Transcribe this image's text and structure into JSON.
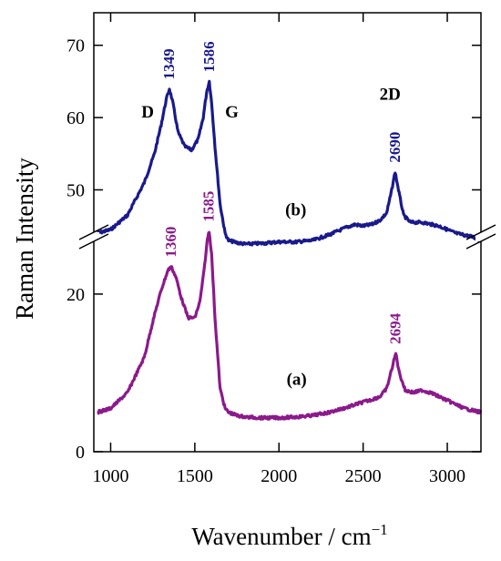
{
  "chart_data": {
    "type": "line",
    "xlabel": "Wavenumber / cm",
    "xlabel_superscript": "−1",
    "ylabel": "Raman Intensity",
    "xlim": [
      900,
      3200
    ],
    "x_ticks": [
      1000,
      1500,
      2000,
      2500,
      3000
    ],
    "y_axis_break": true,
    "upper_panel": {
      "ylim": [
        42.5,
        74.5
      ],
      "y_ticks": [
        50,
        60,
        70
      ]
    },
    "lower_panel": {
      "ylim": [
        0,
        27.5
      ],
      "y_ticks": [
        0,
        20
      ]
    },
    "grid": false,
    "series": [
      {
        "name": "(b)",
        "panel": "upper",
        "color": "#1a1a8c",
        "x": [
          920,
          1000,
          1100,
          1200,
          1260,
          1300,
          1330,
          1349,
          1370,
          1400,
          1440,
          1480,
          1520,
          1550,
          1570,
          1586,
          1600,
          1620,
          1650,
          1680,
          1700,
          1750,
          1800,
          1900,
          2000,
          2100,
          2200,
          2300,
          2400,
          2450,
          2500,
          2550,
          2600,
          2640,
          2670,
          2690,
          2710,
          2740,
          2780,
          2850,
          2950,
          3050,
          3150,
          3200
        ],
        "y": [
          44.0,
          44.5,
          46.5,
          51.0,
          55.0,
          59.0,
          62.5,
          64.0,
          62.0,
          58.0,
          56.0,
          55.5,
          57.0,
          60.0,
          63.5,
          65.0,
          62.0,
          56.0,
          48.0,
          44.0,
          43.0,
          42.7,
          42.5,
          42.6,
          42.8,
          42.8,
          43.0,
          43.8,
          44.8,
          45.2,
          45.0,
          45.2,
          45.8,
          46.8,
          50.0,
          52.5,
          50.0,
          46.5,
          45.5,
          45.5,
          45.0,
          44.0,
          43.5,
          43.0
        ]
      },
      {
        "name": "(a)",
        "panel": "lower",
        "color": "#8b1a8b",
        "x": [
          920,
          1000,
          1100,
          1200,
          1250,
          1300,
          1340,
          1360,
          1390,
          1420,
          1460,
          1500,
          1530,
          1555,
          1575,
          1585,
          1600,
          1620,
          1650,
          1680,
          1700,
          1750,
          1800,
          1900,
          2000,
          2100,
          2200,
          2300,
          2400,
          2500,
          2550,
          2600,
          2640,
          2670,
          2694,
          2715,
          2750,
          2800,
          2850,
          2900,
          2950,
          3000,
          3100,
          3200
        ],
        "y": [
          5.0,
          5.5,
          7.5,
          12.0,
          16.5,
          20.5,
          23.0,
          23.5,
          22.0,
          19.5,
          17.0,
          17.0,
          19.0,
          23.0,
          27.0,
          28.0,
          25.0,
          17.0,
          8.0,
          5.5,
          5.0,
          4.6,
          4.4,
          4.3,
          4.3,
          4.4,
          4.6,
          5.0,
          5.6,
          6.3,
          6.6,
          7.0,
          8.0,
          10.5,
          12.5,
          10.0,
          7.8,
          7.5,
          7.8,
          7.5,
          7.0,
          6.5,
          5.5,
          5.0
        ]
      }
    ],
    "peak_labels": [
      {
        "text": "1349",
        "x": 1349,
        "y": 64.0,
        "panel": "upper",
        "color": "#1a1a8c"
      },
      {
        "text": "1586",
        "x": 1586,
        "y": 65.0,
        "panel": "upper",
        "color": "#1a1a8c"
      },
      {
        "text": "2690",
        "x": 2690,
        "y": 52.5,
        "panel": "upper",
        "color": "#1a1a8c"
      },
      {
        "text": "1360",
        "x": 1360,
        "y": 23.5,
        "panel": "lower",
        "color": "#8b1a8b"
      },
      {
        "text": "1585",
        "x": 1585,
        "y": 28.0,
        "panel": "lower",
        "color": "#8b1a8b"
      },
      {
        "text": "2694",
        "x": 2694,
        "y": 12.5,
        "panel": "lower",
        "color": "#8b1a8b"
      }
    ],
    "annotations": [
      {
        "text": "D",
        "x": 1220,
        "y": 60.0,
        "panel": "upper"
      },
      {
        "text": "G",
        "x": 1720,
        "y": 60.0,
        "panel": "upper"
      },
      {
        "text": "2D",
        "x": 2660,
        "y": 62.5,
        "panel": "upper"
      },
      {
        "text": "(b)",
        "x": 2100,
        "y": 46.5,
        "panel": "upper"
      },
      {
        "text": "(a)",
        "x": 2105,
        "y": 8.5,
        "panel": "lower"
      }
    ]
  }
}
